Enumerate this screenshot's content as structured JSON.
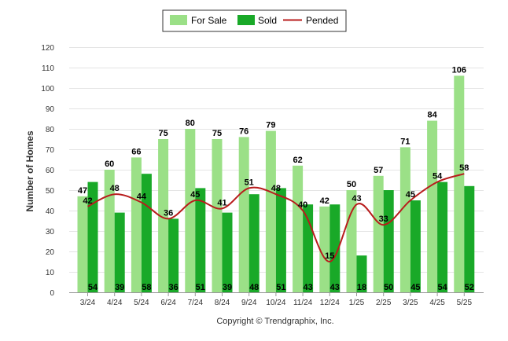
{
  "chart_data": {
    "type": "bar",
    "categories": [
      "3/24",
      "4/24",
      "5/24",
      "6/24",
      "7/24",
      "8/24",
      "9/24",
      "10/24",
      "11/24",
      "12/24",
      "1/25",
      "2/25",
      "3/25",
      "4/25",
      "5/25"
    ],
    "series": [
      {
        "name": "For Sale",
        "kind": "bar",
        "color": "#9be087",
        "values": [
          47,
          60,
          66,
          75,
          80,
          75,
          76,
          79,
          62,
          42,
          50,
          57,
          71,
          84,
          106
        ]
      },
      {
        "name": "Sold",
        "kind": "bar",
        "color": "#19a928",
        "values": [
          54,
          39,
          58,
          36,
          51,
          39,
          48,
          51,
          43,
          43,
          18,
          50,
          45,
          54,
          52
        ]
      },
      {
        "name": "Pended",
        "kind": "line",
        "color": "#b81c1c",
        "values": [
          42,
          48,
          44,
          36,
          45,
          41,
          51,
          48,
          40,
          15,
          43,
          33,
          45,
          54,
          58
        ]
      }
    ],
    "ylabel": "Number of Homes",
    "ylim": [
      0,
      120
    ],
    "yticks": [
      0,
      10,
      20,
      30,
      40,
      50,
      60,
      70,
      80,
      90,
      100,
      110,
      120
    ],
    "grid": true,
    "legend": "top-center",
    "footer": "Copyright © Trendgraphix, Inc."
  }
}
